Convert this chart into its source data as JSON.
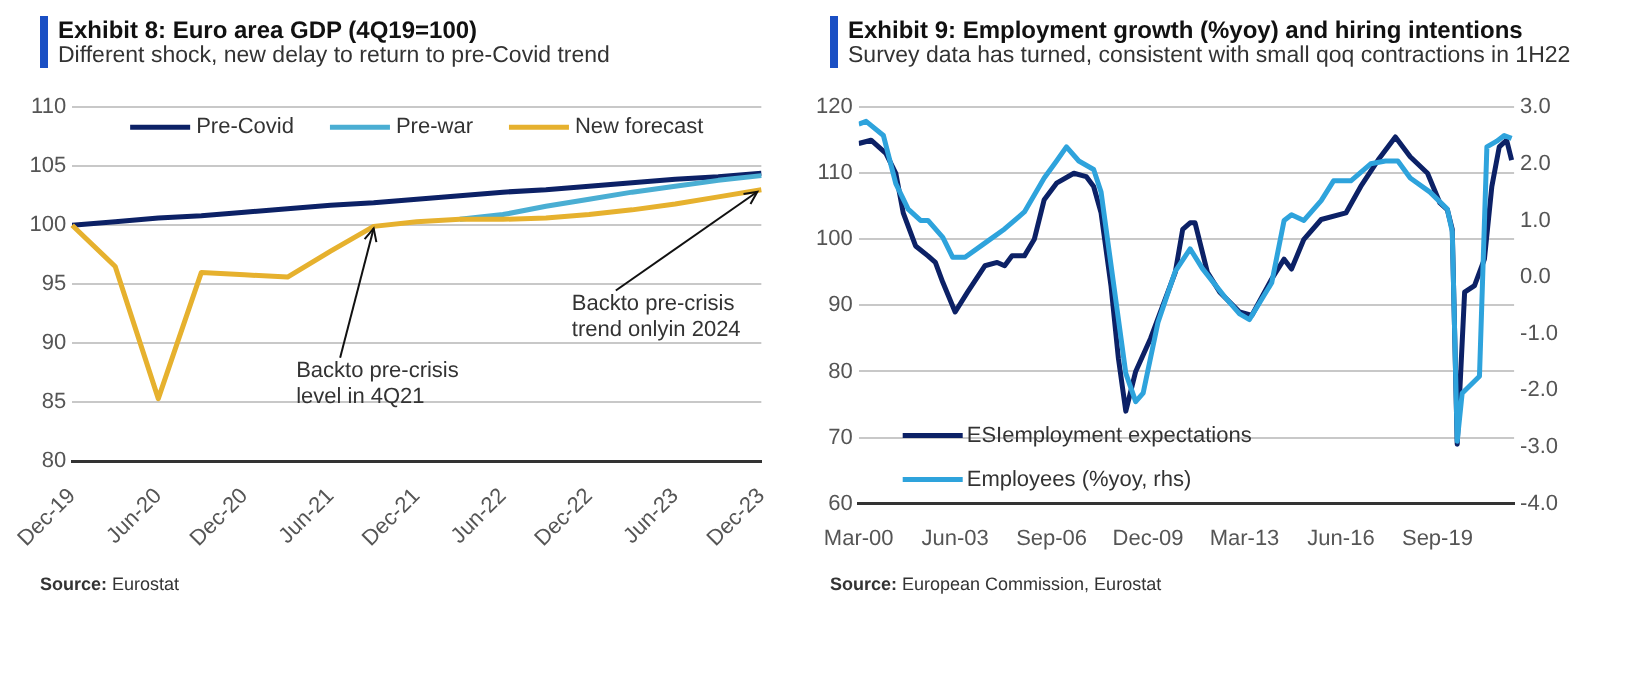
{
  "chart_data": [
    {
      "type": "line",
      "title": "Exhibit 8: Euro area GDP (4Q19=100)",
      "subtitle": "Different shock, new delay to return to pre-Covid trend",
      "categories": [
        "Dec-19",
        null,
        "Jun-20",
        null,
        "Dec-20",
        null,
        "Jun-21",
        null,
        "Dec-21",
        null,
        "Jun-22",
        null,
        "Dec-22",
        null,
        "Jun-23",
        null,
        "Dec-23"
      ],
      "series": [
        {
          "name": "Pre-Covid",
          "color": "#0c2166",
          "values": [
            100,
            100.3,
            100.6,
            100.8,
            101.1,
            101.4,
            101.7,
            101.9,
            102.2,
            102.5,
            102.8,
            103.0,
            103.3,
            103.6,
            103.9,
            104.1,
            104.4
          ]
        },
        {
          "name": "Pre-war",
          "color": "#4aaed3",
          "values": [
            null,
            null,
            null,
            null,
            null,
            null,
            null,
            null,
            null,
            100.5,
            100.9,
            101.6,
            102.2,
            102.8,
            103.3,
            103.8,
            104.2
          ]
        },
        {
          "name": "New forecast",
          "color": "#e6b12e",
          "values": [
            100,
            96.5,
            85.3,
            96.0,
            95.8,
            95.6,
            97.8,
            99.9,
            100.3,
            100.5,
            100.5,
            100.6,
            100.9,
            101.3,
            101.8,
            102.4,
            103.0
          ]
        }
      ],
      "ylim": [
        80,
        110
      ],
      "yticks": [
        80,
        85,
        90,
        95,
        100,
        105,
        110
      ],
      "grid": "y",
      "legend": "top",
      "annotations": [
        {
          "text": "Backto pre-crisis level in 4Q21",
          "y": 99.9
        },
        {
          "text": "Backto pre-crisis trend onlyin 2024",
          "x": "Dec-23",
          "y": 103.0
        },
        "Source: Eurostat"
      ]
    },
    {
      "type": "line",
      "title": "Exhibit 9: Employment growth (%yoy) and hiring intentions",
      "subtitle": "Survey data has turned, consistent with small qoq contractions in 1H22",
      "series": [
        {
          "name": "ESIemployment expectations",
          "color": "#0c2166",
          "x": [
            "2000-03",
            "2000-08",
            "2001-02",
            "2001-06",
            "2001-09",
            "2002-02",
            "2002-07",
            "2002-10",
            "2003-01",
            "2003-06",
            "2003-11",
            "2004-06",
            "2004-11",
            "2005-02",
            "2005-05",
            "2005-10",
            "2006-02",
            "2006-06",
            "2006-11",
            "2007-06",
            "2007-11",
            "2008-02",
            "2008-05",
            "2008-09",
            "2008-12",
            "2009-03",
            "2009-07",
            "2010-01",
            "2010-11",
            "2011-02",
            "2011-05",
            "2011-07",
            "2011-12",
            "2012-05",
            "2013-01",
            "2013-06",
            "2014-02",
            "2014-07",
            "2014-10",
            "2015-03",
            "2015-10",
            "2016-08",
            "2017-02",
            "2017-09",
            "2018-04",
            "2018-10",
            "2019-05",
            "2019-10",
            "2020-01",
            "2020-03",
            "2020-05",
            "2020-08",
            "2020-12",
            "2021-04",
            "2021-07",
            "2021-10",
            "2022-01",
            "2022-03"
          ],
          "values": [
            114.5,
            115,
            113,
            110,
            104,
            99,
            97.5,
            96.5,
            93.5,
            89,
            92,
            96,
            96.5,
            96,
            97.5,
            97.5,
            100,
            106,
            108.5,
            110,
            109.5,
            108,
            104,
            93,
            82,
            74,
            80,
            85,
            95,
            101.5,
            102.5,
            102.5,
            95,
            92,
            89,
            88.5,
            94,
            97,
            95.5,
            100,
            103,
            104,
            108,
            112,
            115.5,
            112.5,
            110,
            105.5,
            104.5,
            101.5,
            69,
            92,
            93,
            97,
            108,
            114,
            115,
            112
          ]
        },
        {
          "name": "Employees (%yoy, rhs)",
          "color": "#2ea3dc",
          "axis": "y2",
          "x": [
            "2000-03",
            "2000-06",
            "2001-01",
            "2001-06",
            "2001-11",
            "2002-04",
            "2002-07",
            "2003-01",
            "2003-05",
            "2003-10",
            "2004-06",
            "2005-02",
            "2005-10",
            "2006-06",
            "2006-11",
            "2007-03",
            "2007-08",
            "2008-02",
            "2008-05",
            "2008-10",
            "2009-03",
            "2009-07",
            "2009-10",
            "2010-04",
            "2010-11",
            "2011-05",
            "2011-10",
            "2012-07",
            "2013-01",
            "2013-05",
            "2014-02",
            "2014-07",
            "2014-10",
            "2015-03",
            "2015-10",
            "2016-03",
            "2016-10",
            "2017-06",
            "2017-12",
            "2018-05",
            "2018-10",
            "2019-06",
            "2020-01",
            "2020-03",
            "2020-05",
            "2020-07",
            "2021-02",
            "2021-05",
            "2021-09",
            "2021-12",
            "2022-03"
          ],
          "values": [
            2.7,
            2.75,
            2.5,
            1.65,
            1.2,
            1.0,
            1.0,
            0.7,
            0.35,
            0.35,
            0.6,
            0.85,
            1.15,
            1.75,
            2.05,
            2.3,
            2.05,
            1.9,
            1.5,
            -0.1,
            -1.7,
            -2.2,
            -2.05,
            -0.8,
            0.1,
            0.5,
            0.15,
            -0.35,
            -0.65,
            -0.75,
            -0.1,
            1.0,
            1.1,
            1.0,
            1.35,
            1.7,
            1.7,
            2.0,
            2.05,
            2.05,
            1.75,
            1.5,
            1.2,
            0.8,
            -2.9,
            -2.05,
            -1.75,
            2.3,
            2.4,
            2.5,
            2.45
          ]
        }
      ],
      "xlim": [
        "2000-03",
        "2022-04"
      ],
      "xticks": [
        {
          "value": "2000-03",
          "label": "Mar-00"
        },
        {
          "value": "2003-06",
          "label": "Jun-03"
        },
        {
          "value": "2006-09",
          "label": "Sep-06"
        },
        {
          "value": "2009-12",
          "label": "Dec-09"
        },
        {
          "value": "2013-03",
          "label": "Mar-13"
        },
        {
          "value": "2016-06",
          "label": "Jun-16"
        },
        {
          "value": "2019-09",
          "label": "Sep-19"
        }
      ],
      "ylim": [
        60,
        120
      ],
      "yticks": [
        60,
        70,
        80,
        90,
        100,
        110,
        120
      ],
      "y2lim": [
        -4,
        3
      ],
      "y2ticks": [
        {
          "value": -4,
          "label": "-4.0"
        },
        {
          "value": -3,
          "label": "-3.0"
        },
        {
          "value": -2,
          "label": "-2.0"
        },
        {
          "value": -1,
          "label": "-1.0"
        },
        {
          "value": 0,
          "label": "0.0"
        },
        {
          "value": 1,
          "label": "1.0"
        },
        {
          "value": 2,
          "label": "2.0"
        },
        {
          "value": 3,
          "label": "3.0"
        }
      ],
      "grid": "y",
      "legend": "bottom left",
      "annotations": [
        "Source: European Commission, Eurostat"
      ]
    }
  ]
}
